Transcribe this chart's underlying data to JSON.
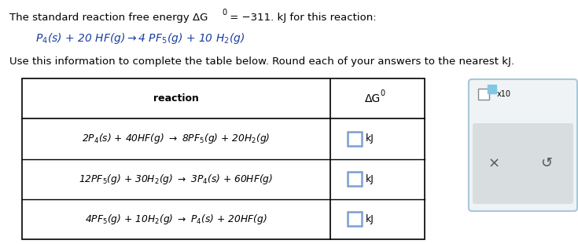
{
  "bg_color": "#ffffff",
  "text_color": "#000000",
  "blue_color": "#1a3fa0",
  "teal_color": "#5b7fb5",
  "input_box_color": "#7b9fd4",
  "title_text1": "The standard reaction free energy ΔG",
  "title_sup": "0",
  "title_text2": " = −311. kJ for this reaction:",
  "ref_reaction": "P₄(s) + 20 HF(g)→4PF₅(g) + 10 H₂(g)",
  "instruction": "Use this information to complete the table below. Round each of your answers to the nearest kJ.",
  "col_header_reaction": "reaction",
  "rows": [
    "2P₄(s) + 40HF(g)  →  8PF₅(g) + 20H₂(g)",
    "12PF₅(g) + 30H₂(g)  →  3P₄(s) + 60HF(g)",
    "4PF₅(g) + 10H₂(g)  →  P₄(s) + 20HF(g)"
  ],
  "figsize": [
    7.35,
    3.11
  ],
  "dpi": 100
}
